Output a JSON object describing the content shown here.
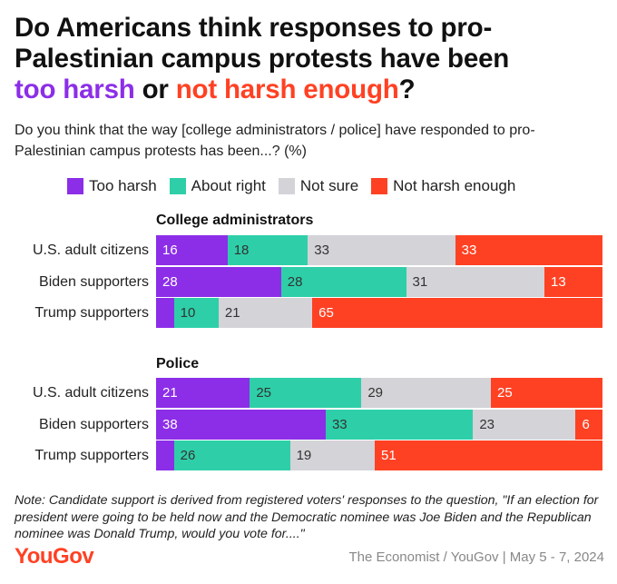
{
  "title": {
    "line1": "Do Americans think responses to pro-",
    "line2": "Palestinian campus protests have been",
    "hl1": "too harsh",
    "mid": " or ",
    "hl2": "not harsh enough",
    "end": "?"
  },
  "subtitle": "Do you think that the way [college administrators / police] have responded to pro-Palestinian campus protests has been...? (%)",
  "colors": {
    "too_harsh": "#8c2ee8",
    "about_right": "#2ecfa8",
    "not_sure": "#d3d3d8",
    "not_harsh_enough": "#ff4123"
  },
  "chart_data": {
    "type": "bar",
    "orientation": "horizontal-stacked-100",
    "series_names": [
      "Too harsh",
      "About right",
      "Not sure",
      "Not harsh enough"
    ],
    "groups": [
      {
        "title": "College administrators",
        "rows": [
          {
            "label": "U.S. adult citizens",
            "values": [
              16,
              18,
              33,
              33
            ]
          },
          {
            "label": "Biden supporters",
            "values": [
              28,
              28,
              31,
              13
            ]
          },
          {
            "label": "Trump supporters",
            "values": [
              4,
              10,
              21,
              65
            ]
          }
        ]
      },
      {
        "title": "Police",
        "rows": [
          {
            "label": "U.S. adult citizens",
            "values": [
              21,
              25,
              29,
              25
            ]
          },
          {
            "label": "Biden supporters",
            "values": [
              38,
              33,
              23,
              6
            ]
          },
          {
            "label": "Trump supporters",
            "values": [
              4,
              26,
              19,
              51
            ]
          }
        ]
      }
    ],
    "data_labels": [
      [
        [
          "16",
          "18",
          "33",
          "33"
        ],
        [
          "28",
          "28",
          "31",
          "13"
        ],
        [
          "",
          "10",
          "21",
          "65"
        ]
      ],
      [
        [
          "21",
          "25",
          "29",
          "25"
        ],
        [
          "38",
          "33",
          "23",
          "6"
        ],
        [
          "",
          "26",
          "19",
          "51"
        ]
      ]
    ]
  },
  "note": "Note: Candidate support is derived from registered voters' responses to the question, \"If an election for president were going to be held now and the Democratic nominee was Joe Biden and the Republican nominee was Donald Trump, would you vote for....\"",
  "logo": "YouGov",
  "source": "The Economist / YouGov | May 5 - 7, 2024"
}
